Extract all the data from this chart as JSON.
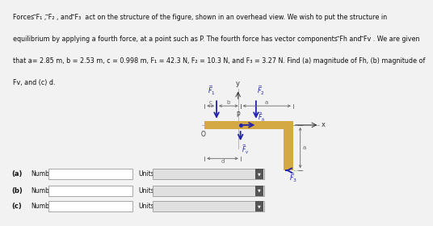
{
  "bg_color": "#f2f2f2",
  "text_color": "#111111",
  "beam_color": "#d4a843",
  "arrow_color": "#2222aa",
  "dim_color": "#666666",
  "axis_color": "#333333",
  "input_bg": "#cccccc",
  "dropdown_bg": "#bbbbbb",
  "line1": "Forces ⃗F₁ , ⃗F₂ , and ⃗F₃  act on the structure of the figure, shown in an overhead view. We wish to put the structure in",
  "line2": "equilibrium by applying a fourth force, at a point such as P. The fourth force has vector components ⃗Fh and ⃗Fv . We are given",
  "line3": "that a= 2.85 m, b = 2.53 m, c = 0.998 m, F₁ = 42.3 N, F₂ = 10.3 N, and F₃ = 3.27 N. Find (a) magnitude of Fh, (b) magnitude of",
  "line4": "Fv, and (c) d."
}
